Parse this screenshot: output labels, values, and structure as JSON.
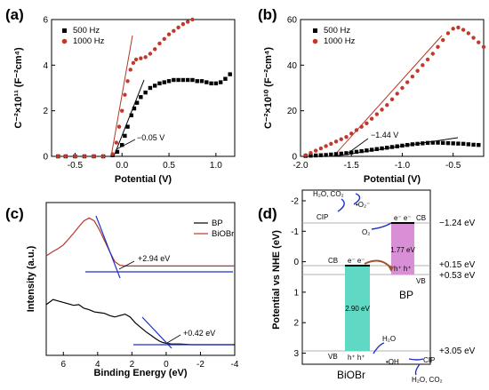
{
  "chart_data": [
    {
      "panel": "(a)",
      "type": "scatter",
      "xlabel": "Potential (V)",
      "ylabel": "C⁻²×10¹¹ (F⁻²cm⁴)",
      "xlim": [
        -0.75,
        1.2
      ],
      "ylim": [
        0,
        6
      ],
      "xticks": [
        "-0.5",
        "0.0",
        "0.5",
        "1.0"
      ],
      "xtick_values": [
        -0.5,
        0.0,
        0.5,
        1.0
      ],
      "yticks": [
        "0",
        "2",
        "4",
        "6"
      ],
      "ytick_values": [
        0,
        2,
        4,
        6
      ],
      "annotation": "−0.05 V",
      "series": [
        {
          "name": "500 Hz",
          "color": "#000000",
          "marker": "square",
          "x": [
            -0.68,
            -0.6,
            -0.5,
            -0.4,
            -0.3,
            -0.2,
            -0.1,
            -0.05,
            0.0,
            0.03,
            0.06,
            0.1,
            0.13,
            0.16,
            0.2,
            0.25,
            0.3,
            0.35,
            0.4,
            0.45,
            0.5,
            0.55,
            0.6,
            0.65,
            0.7,
            0.75,
            0.8,
            0.85,
            0.9,
            0.95,
            1.0,
            1.05,
            1.1,
            1.15
          ],
          "y": [
            0.0,
            0.0,
            0.0,
            0.0,
            0.0,
            0.0,
            0.05,
            0.2,
            0.5,
            0.9,
            1.3,
            1.8,
            2.1,
            2.35,
            2.6,
            2.8,
            3.0,
            3.1,
            3.2,
            3.25,
            3.3,
            3.35,
            3.35,
            3.35,
            3.35,
            3.35,
            3.3,
            3.3,
            3.25,
            3.2,
            3.2,
            3.25,
            3.4,
            3.6
          ]
        },
        {
          "name": "1000 Hz",
          "color": "#c0392b",
          "marker": "circle",
          "x": [
            -0.68,
            -0.6,
            -0.5,
            -0.4,
            -0.3,
            -0.2,
            -0.1,
            -0.06,
            -0.03,
            0.0,
            0.03,
            0.06,
            0.09,
            0.12,
            0.15,
            0.2,
            0.25,
            0.3,
            0.35,
            0.4,
            0.45,
            0.5,
            0.55,
            0.6,
            0.65,
            0.7,
            0.75
          ],
          "y": [
            0.0,
            0.0,
            0.0,
            0.0,
            0.0,
            0.0,
            0.1,
            0.6,
            1.3,
            2.0,
            2.7,
            3.3,
            3.8,
            4.1,
            4.25,
            4.3,
            4.35,
            4.5,
            4.7,
            4.95,
            5.15,
            5.35,
            5.5,
            5.65,
            5.8,
            5.9,
            6.0
          ]
        }
      ]
    },
    {
      "panel": "(b)",
      "type": "scatter",
      "xlabel": "Potential (V)",
      "ylabel": "C⁻²×10¹⁰ (F⁻²cm⁴)",
      "xlim": [
        -2.0,
        -0.2
      ],
      "ylim": [
        0,
        60
      ],
      "xticks": [
        "-2.0",
        "-1.5",
        "-1.0",
        "-0.5"
      ],
      "xtick_values": [
        -2.0,
        -1.5,
        -1.0,
        -0.5
      ],
      "yticks": [
        "0",
        "20",
        "40",
        "60"
      ],
      "ytick_values": [
        0,
        20,
        40,
        60
      ],
      "annotation": "−1.44 V",
      "series": [
        {
          "name": "500 Hz",
          "color": "#000000",
          "marker": "square",
          "x": [
            -1.95,
            -1.9,
            -1.85,
            -1.8,
            -1.75,
            -1.7,
            -1.65,
            -1.6,
            -1.55,
            -1.5,
            -1.45,
            -1.4,
            -1.35,
            -1.3,
            -1.25,
            -1.2,
            -1.15,
            -1.1,
            -1.05,
            -1.0,
            -0.95,
            -0.9,
            -0.85,
            -0.8,
            -0.75,
            -0.7,
            -0.65,
            -0.6,
            -0.55,
            -0.5,
            -0.45,
            -0.4,
            -0.35,
            -0.3,
            -0.25
          ],
          "y": [
            0.2,
            0.3,
            0.4,
            0.5,
            0.6,
            0.8,
            1.0,
            1.2,
            1.4,
            1.7,
            2.0,
            2.3,
            2.6,
            2.9,
            3.2,
            3.5,
            3.8,
            4.1,
            4.4,
            4.7,
            5.0,
            5.3,
            5.5,
            5.7,
            5.9,
            6.0,
            6.0,
            5.9,
            5.8,
            5.7,
            5.6,
            5.5,
            5.3,
            5.1,
            5.0
          ]
        },
        {
          "name": "1000 Hz",
          "color": "#c0392b",
          "marker": "circle",
          "x": [
            -1.95,
            -1.9,
            -1.85,
            -1.8,
            -1.75,
            -1.7,
            -1.65,
            -1.6,
            -1.55,
            -1.5,
            -1.45,
            -1.4,
            -1.35,
            -1.3,
            -1.25,
            -1.2,
            -1.15,
            -1.1,
            -1.05,
            -1.0,
            -0.95,
            -0.9,
            -0.85,
            -0.8,
            -0.75,
            -0.7,
            -0.65,
            -0.6,
            -0.55,
            -0.5,
            -0.45,
            -0.4,
            -0.35,
            -0.3,
            -0.25,
            -0.2
          ],
          "y": [
            0.5,
            1.5,
            2.5,
            3.5,
            4.5,
            5.5,
            6.5,
            7.5,
            8.5,
            10,
            11.5,
            13,
            14.5,
            16.5,
            18.5,
            20.5,
            22.5,
            25,
            27.5,
            30,
            32.5,
            35,
            37.5,
            40,
            42.5,
            45,
            48,
            51,
            54,
            56,
            56.5,
            55.5,
            54,
            52,
            50,
            48
          ]
        }
      ]
    },
    {
      "panel": "(c)",
      "type": "line",
      "xlabel": "Binding Energy (eV)",
      "ylabel": "Intensity (a.u.)",
      "xlim": [
        7,
        -4
      ],
      "xticks": [
        "6",
        "4",
        "2",
        "0",
        "-2",
        "-4"
      ],
      "xtick_values": [
        6,
        4,
        2,
        0,
        -2,
        -4
      ],
      "annotations": [
        "+2.94 eV",
        "+0.42 eV"
      ],
      "series": [
        {
          "name": "BP",
          "color": "#000000",
          "x": [
            7,
            6.6,
            6.3,
            6.0,
            5.7,
            5.4,
            5.1,
            4.8,
            4.5,
            4.2,
            3.9,
            3.6,
            3.3,
            3.0,
            2.7,
            2.4,
            2.1,
            1.8,
            1.5,
            1.2,
            0.9,
            0.6,
            0.4,
            0.2,
            0.0,
            -0.3,
            -0.8,
            -1.5,
            -2.5,
            -3.5,
            -4.0
          ],
          "y": [
            0.55,
            0.62,
            0.6,
            0.58,
            0.56,
            0.54,
            0.55,
            0.5,
            0.48,
            0.45,
            0.44,
            0.43,
            0.4,
            0.38,
            0.4,
            0.42,
            0.38,
            0.3,
            0.24,
            0.18,
            0.13,
            0.08,
            0.05,
            0.03,
            0.02,
            0.01,
            0.01,
            0.0,
            0.0,
            0.0,
            0.0
          ]
        },
        {
          "name": "BiOBr",
          "color": "#b5372a",
          "x": [
            7,
            6.6,
            6.3,
            6.0,
            5.7,
            5.4,
            5.1,
            4.8,
            4.5,
            4.2,
            3.9,
            3.6,
            3.3,
            3.0,
            2.7,
            2.4,
            2.0,
            1.5,
            1.0,
            0.5,
            0.0,
            -1.0,
            -2.0,
            -3.0,
            -4.0
          ],
          "y": [
            1.22,
            1.28,
            1.32,
            1.37,
            1.45,
            1.53,
            1.62,
            1.7,
            1.74,
            1.7,
            1.58,
            1.43,
            1.28,
            1.14,
            1.09,
            1.08,
            1.08,
            1.08,
            1.08,
            1.08,
            1.08,
            1.08,
            1.08,
            1.08,
            1.08
          ]
        }
      ]
    }
  ],
  "band_diagram": {
    "panel": "(d)",
    "ylabel": "Potential vs NHE (eV)",
    "yticks": [
      "-2",
      "-1",
      "0",
      "1",
      "2",
      "3"
    ],
    "ytick_values": [
      -2,
      -1,
      0,
      1,
      2,
      3
    ],
    "levels": {
      "bp_cb": "−1.24 eV",
      "bp_vb": "+0.53 eV",
      "biobr_cb": "+0.15 eV",
      "biobr_vb": "+3.05 eV"
    },
    "bp": {
      "name": "BP",
      "gap": "1.77 eV",
      "cb": -1.24,
      "vb": 0.53,
      "color": "#d98fd6",
      "name_color": "#3a3acd"
    },
    "biobr": {
      "name": "BiOBr",
      "gap": "2.90 eV",
      "cb": 0.15,
      "vb": 3.05,
      "color": "#5fd9c4",
      "name_color": "#3a3acd"
    },
    "labels": {
      "cb": "CB",
      "vb": "VB",
      "electrons": "e⁻ e⁻",
      "holes": "h⁺ h⁺",
      "h2o_co2_top": "H₂O, CO₂",
      "superoxide": "•O₂⁻",
      "cip": "CIP",
      "o2": "O₂",
      "h2o": "H₂O",
      "oh": "•OH",
      "h2o_co2_bottom": "H₂O, CO₂"
    }
  }
}
